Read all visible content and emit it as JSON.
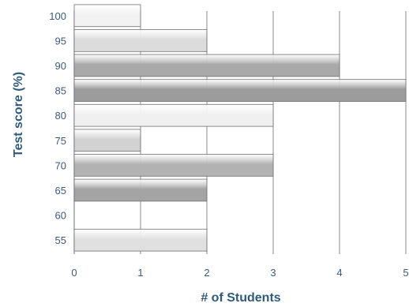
{
  "chart_data": {
    "type": "bar",
    "orientation": "horizontal",
    "categories": [
      "100",
      "95",
      "90",
      "85",
      "80",
      "75",
      "70",
      "65",
      "60",
      "55"
    ],
    "values": [
      1,
      2,
      4,
      5,
      3,
      1,
      3,
      2,
      0,
      2
    ],
    "xlabel": "# of Students",
    "ylabel": "Test score (%)",
    "xlim": [
      0,
      5
    ],
    "xticks": [
      "0",
      "1",
      "2",
      "3",
      "4",
      "5"
    ],
    "grid": "vertical",
    "legend": "none",
    "colors": {
      "label_text": "#3c5a78",
      "axis_title": "#2f5a7c",
      "gridline": "#8a8a8a",
      "bar_stroke": "#6f6f6f",
      "bar_shades": [
        "#f2f2f2",
        "#dcdcdc",
        "#a9a9a9",
        "#9c9c9c",
        "#f0f0f0",
        "#d2d2d2",
        "#b2b2b2",
        "#a4a4a4",
        "#ffffff",
        "#e0e0e0"
      ]
    }
  }
}
